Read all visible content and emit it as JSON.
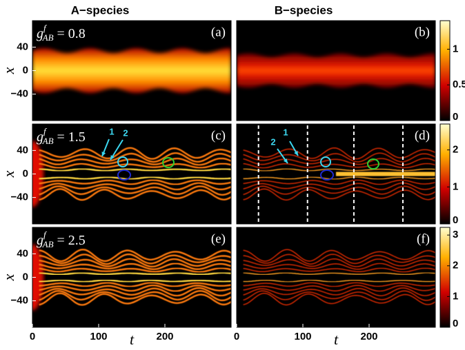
{
  "column_titles": [
    "A−species",
    "B−species"
  ],
  "chart_data": [
    {
      "type": "heatmap",
      "label": "(a)",
      "annotation": {
        "symbol": "g",
        "sup": "f",
        "sub": "AB",
        "value": " = 0.8"
      },
      "xlim": [
        0,
        300
      ],
      "ylim": [
        -85,
        85
      ],
      "yticks": [
        40,
        0,
        {
          "value": -40,
          "label": "−40"
        }
      ],
      "ylabel": "x"
    },
    {
      "type": "heatmap",
      "label": "(b)",
      "xlim": [
        0,
        300
      ],
      "ylim": [
        -85,
        85
      ],
      "colorbar": {
        "lim": [
          0,
          1.4
        ],
        "ticks": [
          0,
          0.5,
          1
        ]
      }
    },
    {
      "type": "heatmap",
      "label": "(c)",
      "annotation": {
        "symbol": "g",
        "sup": "f",
        "sub": "AB",
        "value": " = 1.5"
      },
      "xlim": [
        0,
        300
      ],
      "ylim": [
        -85,
        85
      ],
      "yticks": [
        40,
        0,
        {
          "value": -40,
          "label": "−40"
        }
      ],
      "ylabel": "x",
      "arrow_labels": [
        "1",
        "2"
      ]
    },
    {
      "type": "heatmap",
      "label": "(d)",
      "xlim": [
        0,
        300
      ],
      "ylim": [
        -85,
        85
      ],
      "colorbar": {
        "lim": [
          0,
          2.7
        ],
        "ticks": [
          0,
          1,
          2
        ]
      },
      "vlines": [
        33,
        107,
        177,
        251
      ],
      "arrow_labels": [
        "1",
        "2"
      ]
    },
    {
      "type": "heatmap",
      "label": "(e)",
      "annotation": {
        "symbol": "g",
        "sup": "f",
        "sub": "AB",
        "value": " = 2.5"
      },
      "xlim": [
        0,
        300
      ],
      "ylim": [
        -85,
        85
      ],
      "yticks": [
        40,
        0,
        {
          "value": -40,
          "label": "−40"
        }
      ],
      "ylabel": "x",
      "xticks": [
        0,
        100,
        200
      ],
      "xlabel": "t"
    },
    {
      "type": "heatmap",
      "label": "(f)",
      "xlim": [
        0,
        300
      ],
      "ylim": [
        -85,
        85
      ],
      "colorbar": {
        "lim": [
          0,
          3.25
        ],
        "ticks": [
          0,
          1,
          2,
          3
        ]
      },
      "xticks": [
        0,
        100,
        200
      ],
      "xlabel": "t"
    }
  ]
}
